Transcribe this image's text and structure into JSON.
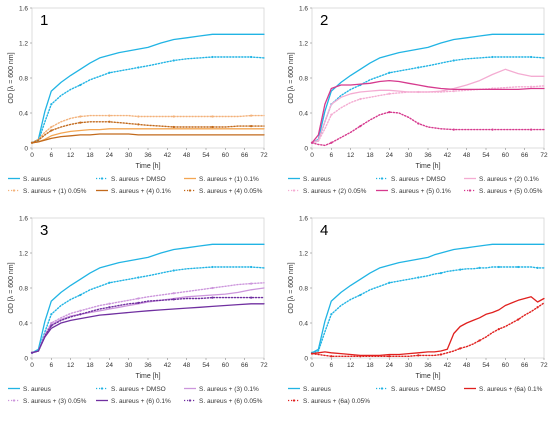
{
  "chart_data": [
    {
      "type": "line",
      "title": "1",
      "xlabel": "Time [h]",
      "ylabel": "OD [λ = 600 nm]",
      "xlim": [
        0,
        72
      ],
      "ylim": [
        0,
        1.6
      ],
      "x_ticks": [
        0,
        6,
        12,
        18,
        24,
        30,
        36,
        42,
        48,
        54,
        60,
        66,
        72
      ],
      "y_ticks": [
        0,
        0.4,
        0.8,
        1.2,
        1.6
      ],
      "y_tick_labels": [
        "0",
        "0.4",
        "0.8",
        "1.2",
        "1.6"
      ],
      "grid": false,
      "legend_position": "bottom",
      "x": [
        0,
        2,
        4,
        6,
        9,
        12,
        15,
        18,
        21,
        24,
        27,
        30,
        33,
        36,
        40,
        44,
        48,
        52,
        56,
        60,
        64,
        68,
        72
      ],
      "series": [
        {
          "name": "S. aureus",
          "color": "#21b4e4",
          "style": "solid",
          "values": [
            0.06,
            0.1,
            0.42,
            0.65,
            0.75,
            0.83,
            0.9,
            0.97,
            1.03,
            1.06,
            1.09,
            1.11,
            1.13,
            1.15,
            1.2,
            1.24,
            1.26,
            1.28,
            1.3,
            1.3,
            1.3,
            1.3,
            1.3
          ]
        },
        {
          "name": "S. aureus + DMSO",
          "color": "#21b4e4",
          "style": "dotted",
          "values": [
            0.06,
            0.08,
            0.3,
            0.5,
            0.6,
            0.67,
            0.72,
            0.78,
            0.82,
            0.86,
            0.88,
            0.9,
            0.92,
            0.94,
            0.97,
            1.0,
            1.02,
            1.03,
            1.04,
            1.04,
            1.04,
            1.04,
            1.03
          ]
        },
        {
          "name": "S. aureus + (1) 0.1%",
          "color": "#f3a653",
          "style": "solid",
          "values": [
            0.06,
            0.07,
            0.1,
            0.14,
            0.17,
            0.19,
            0.2,
            0.21,
            0.21,
            0.22,
            0.22,
            0.22,
            0.22,
            0.22,
            0.22,
            0.22,
            0.22,
            0.22,
            0.22,
            0.22,
            0.22,
            0.22,
            0.22
          ]
        },
        {
          "name": "S. aureus + (1) 0.05%",
          "color": "#f3b27b",
          "style": "dotted",
          "values": [
            0.06,
            0.1,
            0.18,
            0.24,
            0.3,
            0.34,
            0.36,
            0.37,
            0.37,
            0.37,
            0.37,
            0.37,
            0.36,
            0.36,
            0.36,
            0.36,
            0.36,
            0.36,
            0.36,
            0.36,
            0.36,
            0.37,
            0.37
          ]
        },
        {
          "name": "S. aureus + (4) 0.1%",
          "color": "#c26a1c",
          "style": "solid",
          "values": [
            0.06,
            0.07,
            0.09,
            0.11,
            0.13,
            0.14,
            0.15,
            0.15,
            0.16,
            0.16,
            0.16,
            0.16,
            0.15,
            0.15,
            0.15,
            0.15,
            0.15,
            0.15,
            0.15,
            0.15,
            0.15,
            0.15,
            0.15
          ]
        },
        {
          "name": "S. aureus + (4) 0.05%",
          "color": "#c26a1c",
          "style": "dotted",
          "values": [
            0.06,
            0.09,
            0.15,
            0.2,
            0.24,
            0.27,
            0.29,
            0.3,
            0.3,
            0.3,
            0.29,
            0.28,
            0.27,
            0.26,
            0.25,
            0.24,
            0.24,
            0.24,
            0.24,
            0.24,
            0.25,
            0.25,
            0.25
          ]
        }
      ]
    },
    {
      "type": "line",
      "title": "2",
      "xlabel": "Time [h]",
      "ylabel": "OD [λ = 600 nm]",
      "xlim": [
        0,
        72
      ],
      "ylim": [
        0,
        1.6
      ],
      "x_ticks": [
        0,
        6,
        12,
        18,
        24,
        30,
        36,
        42,
        48,
        54,
        60,
        66,
        72
      ],
      "y_ticks": [
        0,
        0.4,
        0.8,
        1.2,
        1.6
      ],
      "y_tick_labels": [
        "0",
        "0.4",
        "0.8",
        "1.2",
        "1.6"
      ],
      "grid": false,
      "legend_position": "bottom",
      "x": [
        0,
        2,
        4,
        6,
        9,
        12,
        15,
        18,
        21,
        24,
        27,
        30,
        33,
        36,
        40,
        44,
        48,
        52,
        56,
        60,
        64,
        68,
        72
      ],
      "series": [
        {
          "name": "S. aureus",
          "color": "#21b4e4",
          "style": "solid",
          "values": [
            0.06,
            0.1,
            0.42,
            0.65,
            0.75,
            0.83,
            0.9,
            0.97,
            1.03,
            1.06,
            1.09,
            1.11,
            1.13,
            1.15,
            1.2,
            1.24,
            1.26,
            1.28,
            1.3,
            1.3,
            1.3,
            1.3,
            1.3
          ]
        },
        {
          "name": "S. aureus + DMSO",
          "color": "#21b4e4",
          "style": "dotted",
          "values": [
            0.06,
            0.08,
            0.3,
            0.5,
            0.6,
            0.67,
            0.72,
            0.78,
            0.82,
            0.86,
            0.88,
            0.9,
            0.92,
            0.94,
            0.97,
            1.0,
            1.02,
            1.03,
            1.04,
            1.04,
            1.04,
            1.04,
            1.03
          ]
        },
        {
          "name": "S. aureus + (2) 0.1%",
          "color": "#f4acd2",
          "style": "solid",
          "values": [
            0.06,
            0.09,
            0.3,
            0.5,
            0.58,
            0.62,
            0.64,
            0.65,
            0.66,
            0.66,
            0.65,
            0.64,
            0.64,
            0.64,
            0.65,
            0.68,
            0.72,
            0.77,
            0.84,
            0.9,
            0.85,
            0.82,
            0.82
          ]
        },
        {
          "name": "S. aureus + (2) 0.05%",
          "color": "#f4acd2",
          "style": "dotted",
          "values": [
            0.06,
            0.08,
            0.22,
            0.38,
            0.46,
            0.52,
            0.56,
            0.58,
            0.6,
            0.62,
            0.63,
            0.64,
            0.64,
            0.64,
            0.64,
            0.65,
            0.66,
            0.67,
            0.68,
            0.69,
            0.7,
            0.7,
            0.71
          ]
        },
        {
          "name": "S. aureus + (5) 0.1%",
          "color": "#d63a8e",
          "style": "solid",
          "values": [
            0.06,
            0.15,
            0.5,
            0.68,
            0.72,
            0.72,
            0.73,
            0.74,
            0.76,
            0.77,
            0.76,
            0.74,
            0.72,
            0.7,
            0.68,
            0.67,
            0.67,
            0.67,
            0.67,
            0.67,
            0.67,
            0.68,
            0.68
          ]
        },
        {
          "name": "S. aureus + (5) 0.05%",
          "color": "#d63a8e",
          "style": "dotted",
          "values": [
            0.06,
            0.04,
            0.03,
            0.06,
            0.12,
            0.18,
            0.25,
            0.32,
            0.38,
            0.41,
            0.4,
            0.35,
            0.28,
            0.24,
            0.22,
            0.21,
            0.21,
            0.21,
            0.21,
            0.21,
            0.21,
            0.21,
            0.21
          ]
        }
      ]
    },
    {
      "type": "line",
      "title": "3",
      "xlabel": "Time [h]",
      "ylabel": "OD [λ = 600 nm]",
      "xlim": [
        0,
        72
      ],
      "ylim": [
        0,
        1.6
      ],
      "x_ticks": [
        0,
        6,
        12,
        18,
        24,
        30,
        36,
        42,
        48,
        54,
        60,
        66,
        72
      ],
      "y_ticks": [
        0,
        0.4,
        0.8,
        1.2,
        1.6
      ],
      "y_tick_labels": [
        "0",
        "0.4",
        "0.8",
        "1.2",
        "1.6"
      ],
      "grid": false,
      "legend_position": "bottom",
      "x": [
        0,
        2,
        4,
        6,
        9,
        12,
        15,
        18,
        21,
        24,
        27,
        30,
        33,
        36,
        40,
        44,
        48,
        52,
        56,
        60,
        64,
        68,
        72
      ],
      "series": [
        {
          "name": "S. aureus",
          "color": "#21b4e4",
          "style": "solid",
          "values": [
            0.06,
            0.1,
            0.42,
            0.65,
            0.75,
            0.83,
            0.9,
            0.97,
            1.03,
            1.06,
            1.09,
            1.11,
            1.13,
            1.15,
            1.2,
            1.24,
            1.26,
            1.28,
            1.3,
            1.3,
            1.3,
            1.3,
            1.3
          ]
        },
        {
          "name": "S. aureus + DMSO",
          "color": "#21b4e4",
          "style": "dotted",
          "values": [
            0.06,
            0.08,
            0.3,
            0.5,
            0.6,
            0.67,
            0.72,
            0.78,
            0.82,
            0.86,
            0.88,
            0.9,
            0.92,
            0.94,
            0.97,
            1.0,
            1.02,
            1.03,
            1.04,
            1.04,
            1.04,
            1.04,
            1.03
          ]
        },
        {
          "name": "S. aureus + (3) 0.1%",
          "color": "#cc96dc",
          "style": "solid",
          "values": [
            0.06,
            0.08,
            0.25,
            0.38,
            0.44,
            0.48,
            0.5,
            0.52,
            0.54,
            0.56,
            0.58,
            0.6,
            0.62,
            0.64,
            0.66,
            0.68,
            0.7,
            0.71,
            0.72,
            0.73,
            0.75,
            0.78,
            0.8
          ]
        },
        {
          "name": "S. aureus + (3) 0.05%",
          "color": "#cc96dc",
          "style": "dotted",
          "values": [
            0.06,
            0.08,
            0.27,
            0.4,
            0.46,
            0.51,
            0.54,
            0.57,
            0.6,
            0.62,
            0.64,
            0.66,
            0.68,
            0.7,
            0.72,
            0.74,
            0.76,
            0.78,
            0.8,
            0.82,
            0.84,
            0.85,
            0.86
          ]
        },
        {
          "name": "S. aureus + (6) 0.1%",
          "color": "#7030a0",
          "style": "solid",
          "values": [
            0.06,
            0.08,
            0.24,
            0.34,
            0.4,
            0.43,
            0.45,
            0.47,
            0.49,
            0.5,
            0.51,
            0.52,
            0.53,
            0.54,
            0.55,
            0.56,
            0.57,
            0.58,
            0.59,
            0.6,
            0.61,
            0.62,
            0.62
          ]
        },
        {
          "name": "S. aureus + (6) 0.05%",
          "color": "#7030a0",
          "style": "dotted",
          "values": [
            0.06,
            0.08,
            0.25,
            0.37,
            0.43,
            0.47,
            0.5,
            0.53,
            0.56,
            0.58,
            0.6,
            0.62,
            0.63,
            0.65,
            0.66,
            0.67,
            0.68,
            0.68,
            0.69,
            0.69,
            0.69,
            0.69,
            0.69
          ]
        }
      ]
    },
    {
      "type": "line",
      "title": "4",
      "xlabel": "Time [h]",
      "ylabel": "OD [λ = 600 nm]",
      "xlim": [
        0,
        72
      ],
      "ylim": [
        0,
        1.6
      ],
      "x_ticks": [
        0,
        6,
        12,
        18,
        24,
        30,
        36,
        42,
        48,
        54,
        60,
        66,
        72
      ],
      "y_ticks": [
        0,
        0.4,
        0.8,
        1.2,
        1.6
      ],
      "y_tick_labels": [
        "0",
        "0.4",
        "0.8",
        "1.2",
        "1.6"
      ],
      "grid": false,
      "legend_position": "bottom",
      "x": [
        0,
        2,
        4,
        6,
        9,
        12,
        15,
        18,
        21,
        24,
        27,
        30,
        33,
        36,
        38,
        40,
        42,
        44,
        46,
        48,
        50,
        52,
        54,
        56,
        58,
        60,
        62,
        64,
        66,
        68,
        70,
        72
      ],
      "series": [
        {
          "name": "S. aureus",
          "color": "#21b4e4",
          "style": "solid",
          "values": [
            0.06,
            0.1,
            0.42,
            0.65,
            0.75,
            0.83,
            0.9,
            0.97,
            1.03,
            1.06,
            1.09,
            1.11,
            1.13,
            1.15,
            1.18,
            1.2,
            1.22,
            1.24,
            1.25,
            1.26,
            1.27,
            1.28,
            1.29,
            1.3,
            1.3,
            1.3,
            1.3,
            1.3,
            1.3,
            1.3,
            1.3,
            1.3
          ]
        },
        {
          "name": "S. aureus + DMSO",
          "color": "#21b4e4",
          "style": "dotted",
          "values": [
            0.06,
            0.08,
            0.3,
            0.5,
            0.6,
            0.67,
            0.72,
            0.78,
            0.82,
            0.86,
            0.88,
            0.9,
            0.92,
            0.94,
            0.96,
            0.97,
            0.99,
            1.0,
            1.01,
            1.02,
            1.02,
            1.03,
            1.03,
            1.04,
            1.04,
            1.04,
            1.04,
            1.04,
            1.04,
            1.04,
            1.03,
            1.03
          ]
        },
        {
          "name": "S. aureus + (6a) 0.1%",
          "color": "#e0201e",
          "style": "solid",
          "values": [
            0.05,
            0.06,
            0.07,
            0.06,
            0.05,
            0.04,
            0.03,
            0.03,
            0.03,
            0.04,
            0.04,
            0.05,
            0.06,
            0.07,
            0.07,
            0.08,
            0.1,
            0.28,
            0.36,
            0.4,
            0.43,
            0.46,
            0.5,
            0.52,
            0.55,
            0.6,
            0.63,
            0.66,
            0.68,
            0.7,
            0.64,
            0.68
          ]
        },
        {
          "name": "S. aureus + (6a) 0.05%",
          "color": "#e0201e",
          "style": "dotted",
          "values": [
            0.05,
            0.04,
            0.03,
            0.02,
            0.02,
            0.02,
            0.02,
            0.02,
            0.02,
            0.02,
            0.02,
            0.02,
            0.03,
            0.03,
            0.03,
            0.04,
            0.06,
            0.08,
            0.11,
            0.13,
            0.16,
            0.2,
            0.24,
            0.29,
            0.33,
            0.36,
            0.4,
            0.44,
            0.49,
            0.53,
            0.58,
            0.63
          ]
        }
      ]
    }
  ]
}
